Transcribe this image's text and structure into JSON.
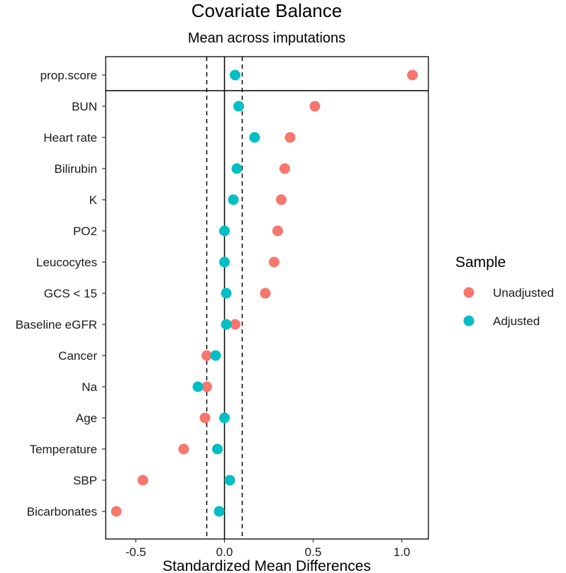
{
  "chart_data": {
    "type": "scatter",
    "title": "Covariate Balance",
    "subtitle": "Mean across imputations",
    "xlabel": "Standardized Mean Differences",
    "ylabel": "",
    "xlim": [
      -0.67,
      1.15
    ],
    "xticks": [
      -0.5,
      0.0,
      0.5,
      1.0
    ],
    "xtick_labels": [
      "-0.5",
      "0.0",
      "0.5",
      "1.0"
    ],
    "reference_lines": {
      "solid": [
        0.0
      ],
      "dashed": [
        -0.1,
        0.1
      ]
    },
    "separator_after": "prop.score",
    "categories": [
      "prop.score",
      "BUN",
      "Heart rate",
      "Bilirubin",
      "K",
      "PO2",
      "Leucocytes",
      "GCS < 15",
      "Baseline eGFR",
      "Cancer",
      "Na",
      "Age",
      "Temperature",
      "SBP",
      "Bicarbonates"
    ],
    "series": [
      {
        "name": "Unadjusted",
        "color": "#F8766D",
        "values": [
          1.06,
          0.51,
          0.37,
          0.34,
          0.32,
          0.3,
          0.28,
          0.23,
          0.06,
          -0.1,
          -0.1,
          -0.11,
          -0.23,
          -0.46,
          -0.61
        ]
      },
      {
        "name": "Adjusted",
        "color": "#00BFC4",
        "values": [
          0.06,
          0.08,
          0.17,
          0.07,
          0.05,
          0.0,
          0.0,
          0.01,
          0.01,
          -0.05,
          -0.15,
          0.0,
          -0.04,
          0.03,
          -0.03
        ]
      }
    ],
    "legend": {
      "title": "Sample",
      "position": "right"
    }
  }
}
